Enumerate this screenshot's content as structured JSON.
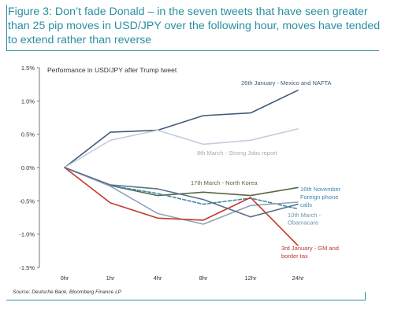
{
  "figure": {
    "title": "Figure 3: Don’t fade Donald – in the seven tweets that have seen greater than 25 pip moves in USD/JPY over the following hour, moves have tended to extend rather than reverse",
    "source": "Source: Deutsche Bank, Bloomberg Finance LP"
  },
  "chart_data": {
    "type": "line",
    "title": "Performance in USD/JPY after Trump tweet",
    "xlabel": "",
    "ylabel": "",
    "categories": [
      "0hr",
      "1hr",
      "4hr",
      "8hr",
      "12hr",
      "24hr"
    ],
    "ylim": [
      -1.5,
      1.5
    ],
    "yticks": [
      "1.5%",
      "1.0%",
      "0.5%",
      "0.0%",
      "-0.5%",
      "-1.0%",
      "-1.5%"
    ],
    "ytick_values": [
      1.5,
      1.0,
      0.5,
      0.0,
      -0.5,
      -1.0,
      -1.5
    ],
    "grid": false,
    "legend": "none (series labelled directly on chart)",
    "series": [
      {
        "name": "26th January - Mexico and NAFTA",
        "color": "#3f5a7a",
        "dash": false,
        "values": [
          0,
          0.53,
          0.56,
          0.78,
          0.82,
          1.16
        ]
      },
      {
        "name": "8th March - Strong Jobs report",
        "color": "#c6ccdc",
        "dash": false,
        "values": [
          0,
          0.41,
          0.56,
          0.35,
          0.41,
          0.58
        ]
      },
      {
        "name": "17th March - North Korea",
        "color": "#5a6845",
        "dash": false,
        "values": [
          0,
          -0.27,
          -0.42,
          -0.37,
          -0.42,
          -0.3
        ]
      },
      {
        "name": "16th November Foreign phone calls",
        "color": "#3b8aa8",
        "dash": true,
        "values": [
          0,
          -0.27,
          -0.39,
          -0.55,
          -0.46,
          -0.62
        ]
      },
      {
        "name": "10th March - Obamacare",
        "color": "#8fa4ba",
        "dash": false,
        "values": [
          0,
          -0.28,
          -0.69,
          -0.85,
          -0.57,
          -0.52
        ]
      },
      {
        "name": "3rd January - GM and border tax",
        "color": "#c0392b",
        "dash": false,
        "values": [
          0,
          -0.53,
          -0.76,
          -0.79,
          -0.45,
          -1.17
        ]
      },
      {
        "name": "",
        "color": "#5b7088",
        "dash": false,
        "values": [
          0,
          -0.26,
          -0.32,
          -0.48,
          -0.74,
          -0.55
        ]
      }
    ],
    "labels": [
      {
        "lines": [
          "26th January - Mexico and NAFTA"
        ],
        "color": "#3f5a7a"
      },
      {
        "lines": [
          "8th March - Strong Jobs report"
        ],
        "color": "#a5aab8"
      },
      {
        "lines": [
          "17th March - North Korea"
        ],
        "color": "#5a6845"
      },
      {
        "lines": [
          "16th November",
          "Foreign phone",
          "calls"
        ],
        "color": "#3b8aa8"
      },
      {
        "lines": [
          "10th March -",
          "Obamacare"
        ],
        "color": "#6f96ad"
      },
      {
        "lines": [
          "3rd January - GM and",
          "border tax"
        ],
        "color": "#c0392b"
      }
    ]
  }
}
